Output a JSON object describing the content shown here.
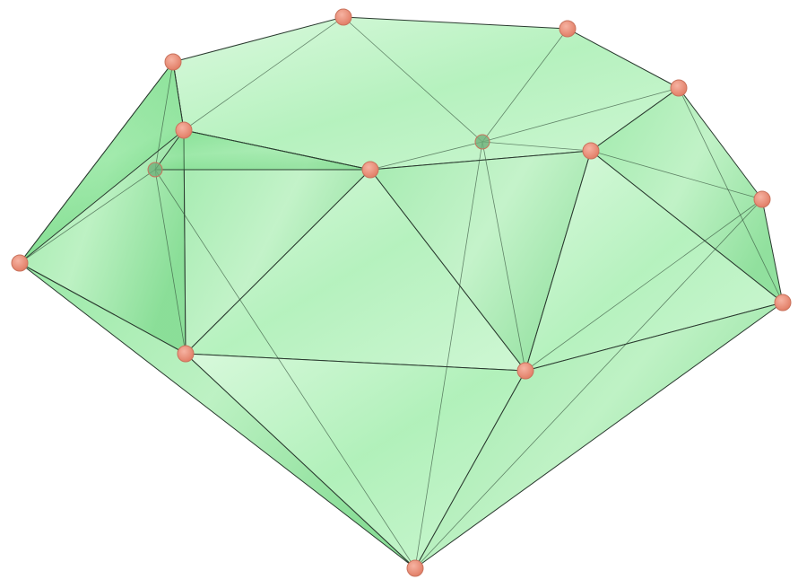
{
  "figure": {
    "subject": "green-gemstone-polyhedron",
    "colors": {
      "face_light": "#bff3c6",
      "face_mid": "#86e496",
      "face_dark": "#45c85c",
      "edge": "#2a3a2f",
      "vertex": "#ee8d77",
      "background": "#ffffff"
    },
    "vertex_count": 15,
    "vertex_labels": []
  }
}
